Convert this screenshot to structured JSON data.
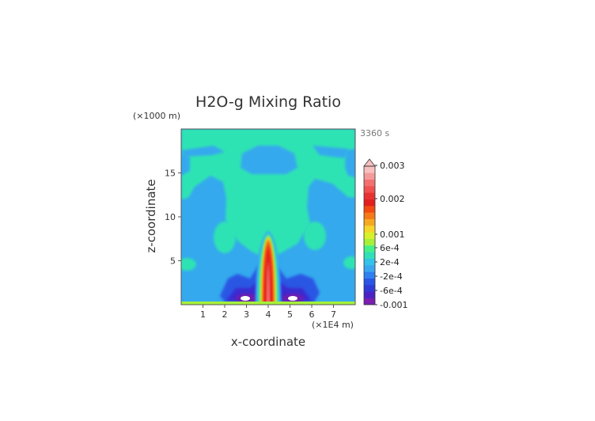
{
  "chart_data": {
    "type": "heatmap",
    "title": "H2O-g Mixing Ratio",
    "time_label": "3360 s",
    "xlabel": "x-coordinate",
    "ylabel": "z-coordinate",
    "x_unit": "(×1E4 m)",
    "y_unit": "(×1000 m)",
    "xlim": [
      0,
      8
    ],
    "ylim": [
      0,
      20
    ],
    "x_ticks": [
      "1",
      "2",
      "3",
      "4",
      "5",
      "6",
      "7"
    ],
    "y_ticks": [
      "5",
      "10",
      "15"
    ],
    "colorbar_labels": [
      "0.003",
      "0.002",
      "0.001",
      "6e-4",
      "2e-4",
      "-2e-4",
      "-6e-4",
      "-0.001"
    ],
    "colorbar_colors": [
      "#7a1fb0",
      "#4b22c4",
      "#2f3ad8",
      "#2a55e6",
      "#2f7ff0",
      "#3aa6f2",
      "#33c2e8",
      "#2fe0b8",
      "#45f08a",
      "#a6f03a",
      "#d8ef2b",
      "#f5d52a",
      "#f6a91f",
      "#f57a18",
      "#f24a12",
      "#e21e1e",
      "#e83232",
      "#ef5050",
      "#f27070",
      "#f59a9a",
      "#f8c0c0"
    ],
    "regions": [
      {
        "name": "background",
        "level": "-2e-4 to 0",
        "color": "#34a9ee"
      },
      {
        "name": "upper-band",
        "level": "0 to 2e-4",
        "color": "#2de3b3",
        "z_range": [
          16.5,
          20
        ]
      },
      {
        "name": "mid-plume",
        "level": "0 to 2e-4",
        "color": "#2de3b3"
      },
      {
        "name": "central-plume",
        "level": "up to 0.003",
        "color": "#e21e1e",
        "x": 4,
        "z_top": 8
      }
    ]
  }
}
